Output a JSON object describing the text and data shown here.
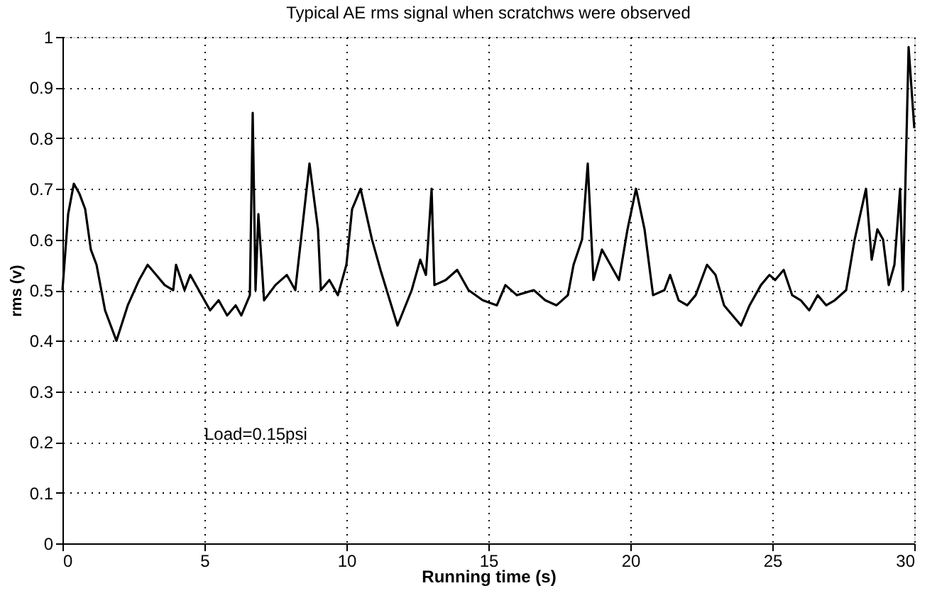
{
  "chart_data": {
    "type": "line",
    "title": "Typical AE rms signal when scratchws were observed",
    "xlabel": "Running time (s)",
    "ylabel": "rms (v)",
    "x": [
      0,
      0.2,
      0.4,
      0.6,
      0.8,
      1.0,
      1.2,
      1.5,
      1.9,
      2.3,
      2.7,
      3.0,
      3.3,
      3.6,
      3.9,
      4.0,
      4.3,
      4.5,
      4.8,
      5.2,
      5.5,
      5.8,
      6.1,
      6.3,
      6.6,
      6.7,
      6.8,
      6.9,
      7.1,
      7.5,
      7.9,
      8.2,
      8.5,
      8.7,
      9.0,
      9.1,
      9.4,
      9.7,
      10.0,
      10.2,
      10.5,
      10.9,
      11.2,
      11.8,
      12.3,
      12.6,
      12.8,
      13.0,
      13.1,
      13.5,
      13.9,
      14.3,
      14.8,
      15.3,
      15.6,
      16.0,
      16.6,
      17.0,
      17.4,
      17.8,
      18.0,
      18.3,
      18.5,
      18.7,
      19.0,
      19.3,
      19.6,
      19.9,
      20.2,
      20.5,
      20.8,
      21.2,
      21.4,
      21.7,
      22.0,
      22.3,
      22.7,
      23.0,
      23.3,
      23.6,
      23.9,
      24.2,
      24.6,
      24.9,
      25.1,
      25.4,
      25.7,
      26.0,
      26.3,
      26.6,
      26.9,
      27.2,
      27.6,
      27.9,
      28.1,
      28.3,
      28.5,
      28.7,
      28.9,
      29.1,
      29.3,
      29.5,
      29.6,
      29.8,
      29.9,
      30
    ],
    "values": [
      0.5,
      0.65,
      0.71,
      0.69,
      0.66,
      0.58,
      0.55,
      0.46,
      0.4,
      0.47,
      0.52,
      0.55,
      0.53,
      0.51,
      0.5,
      0.55,
      0.5,
      0.53,
      0.5,
      0.46,
      0.48,
      0.45,
      0.47,
      0.45,
      0.49,
      0.85,
      0.5,
      0.65,
      0.48,
      0.51,
      0.53,
      0.5,
      0.65,
      0.75,
      0.62,
      0.5,
      0.52,
      0.49,
      0.55,
      0.66,
      0.7,
      0.6,
      0.54,
      0.43,
      0.5,
      0.56,
      0.53,
      0.7,
      0.51,
      0.52,
      0.54,
      0.5,
      0.48,
      0.47,
      0.51,
      0.49,
      0.5,
      0.48,
      0.47,
      0.49,
      0.55,
      0.6,
      0.75,
      0.52,
      0.58,
      0.55,
      0.52,
      0.62,
      0.7,
      0.62,
      0.49,
      0.5,
      0.53,
      0.48,
      0.47,
      0.49,
      0.55,
      0.53,
      0.47,
      0.45,
      0.43,
      0.47,
      0.51,
      0.53,
      0.52,
      0.54,
      0.49,
      0.48,
      0.46,
      0.49,
      0.47,
      0.48,
      0.5,
      0.6,
      0.65,
      0.7,
      0.56,
      0.62,
      0.6,
      0.51,
      0.55,
      0.7,
      0.5,
      0.98,
      0.9,
      0.82
    ],
    "color": "#000000",
    "xlim": [
      0,
      30
    ],
    "ylim": [
      0,
      1
    ],
    "xticks": [
      0,
      5,
      10,
      15,
      20,
      25,
      30
    ],
    "yticks": [
      0,
      0.1,
      0.2,
      0.3,
      0.4,
      0.5,
      0.6,
      0.7,
      0.8,
      0.9,
      1
    ],
    "grid": true,
    "line_style": "solid",
    "marker": "none",
    "annotations": [
      "Load=0.15psi"
    ]
  }
}
